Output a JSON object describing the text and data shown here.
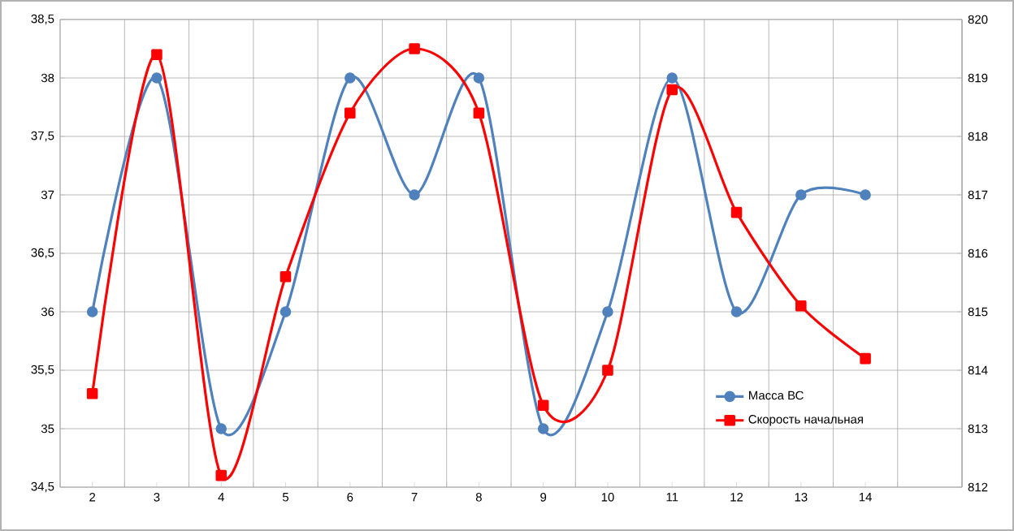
{
  "chart_data": {
    "type": "line",
    "categories": [
      "2",
      "3",
      "4",
      "5",
      "6",
      "7",
      "8",
      "9",
      "10",
      "11",
      "12",
      "13",
      "14",
      null
    ],
    "series": [
      {
        "name": "Масса ВС",
        "color": "#4f81bd",
        "marker": "circle",
        "values": [
          36,
          38,
          35,
          36,
          38,
          37,
          38,
          35,
          36,
          38,
          36,
          37,
          37,
          null
        ]
      },
      {
        "name": "Скорость начальная",
        "color": "#ff0000",
        "marker": "square",
        "axis": "y2",
        "values": [
          813.6,
          819.4,
          812.2,
          815.6,
          818.4,
          819.5,
          818.4,
          813.4,
          814.0,
          818.8,
          816.7,
          815.1,
          814.2,
          null
        ]
      }
    ],
    "ylim": [
      34.5,
      38.5
    ],
    "yticks": [
      {
        "value": 34.5,
        "label": "34,5"
      },
      35,
      {
        "value": 35.5,
        "label": "35,5"
      },
      36,
      {
        "value": 36.5,
        "label": "36,5"
      },
      37,
      {
        "value": 37.5,
        "label": "37,5"
      },
      38,
      {
        "value": 38.5,
        "label": "38,5"
      }
    ],
    "y2lim": [
      812,
      820
    ],
    "y2ticks": [
      812,
      813,
      814,
      815,
      816,
      817,
      818,
      819,
      820
    ],
    "grid": true,
    "legend": "right",
    "line_style": "solid"
  }
}
